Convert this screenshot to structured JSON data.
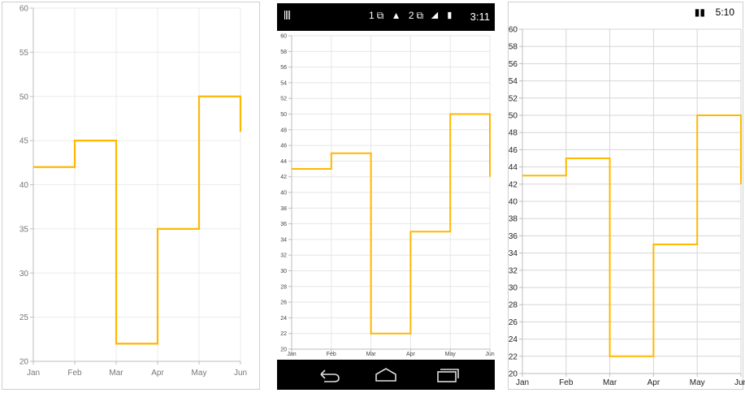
{
  "panel_2_status": {
    "time": "3:11",
    "icons": "1⧉ ▲ 2⧉ ◢ ▮"
  },
  "panel_3_status": {
    "time": "5:10"
  },
  "colors": {
    "series": "#FFB800"
  },
  "chart_data": [
    {
      "type": "line",
      "step": true,
      "platform": "Windows",
      "categories": [
        "Jan",
        "Feb",
        "Mar",
        "Apr",
        "May",
        "Jun"
      ],
      "values": [
        42,
        45,
        22,
        35,
        50,
        46
      ],
      "ylim": [
        20,
        60
      ],
      "yticks": [
        20,
        25,
        30,
        35,
        40,
        45,
        50,
        55,
        60
      ],
      "grid": true,
      "legend": "none"
    },
    {
      "type": "line",
      "step": true,
      "platform": "Android",
      "categories": [
        "Jan",
        "Feb",
        "Mar",
        "Apr",
        "May",
        "Jun"
      ],
      "values": [
        43,
        45,
        22,
        35,
        50,
        42
      ],
      "ylim": [
        20,
        60
      ],
      "yticks": [
        20,
        22,
        24,
        26,
        28,
        30,
        32,
        34,
        36,
        38,
        40,
        42,
        44,
        46,
        48,
        50,
        52,
        54,
        56,
        58,
        60
      ],
      "grid": true,
      "legend": "none"
    },
    {
      "type": "line",
      "step": true,
      "platform": "iOS",
      "categories": [
        "Jan",
        "Feb",
        "Mar",
        "Apr",
        "May",
        "Jun"
      ],
      "values": [
        43,
        45,
        22,
        35,
        50,
        42
      ],
      "ylim": [
        20,
        60
      ],
      "yticks": [
        20,
        22,
        24,
        26,
        28,
        30,
        32,
        34,
        36,
        38,
        40,
        42,
        44,
        46,
        48,
        50,
        52,
        54,
        56,
        58,
        60
      ],
      "grid": true,
      "legend": "none"
    }
  ]
}
